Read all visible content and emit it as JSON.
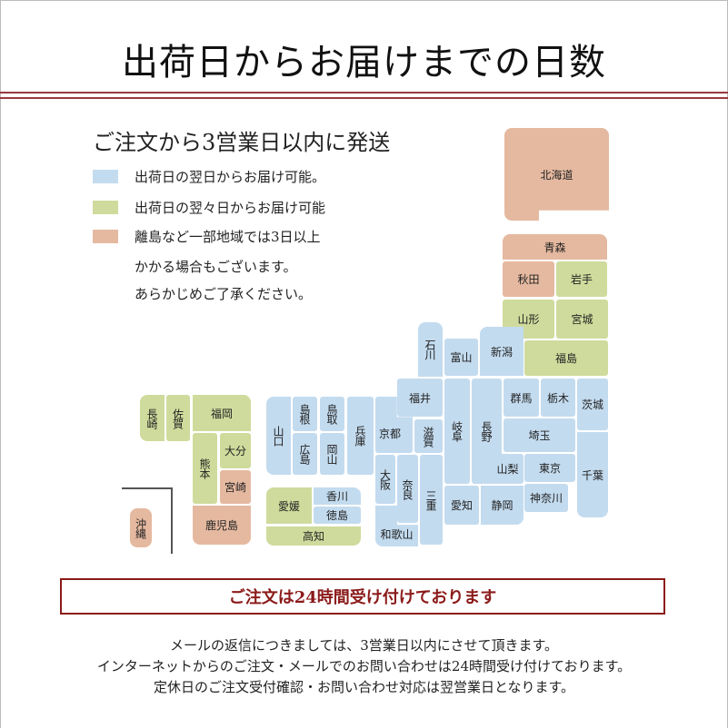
{
  "title": "出荷日からお届けまでの日数",
  "subtitle": "ご注文から3営業日以内に発送",
  "colors": {
    "next_day": "#c3dbef",
    "two_days": "#cfdb9c",
    "three_plus": "#e5b9a0",
    "accent": "#8b1a1a"
  },
  "legend": [
    {
      "zone": "blue",
      "text": "出荷日の翌日からお届け可能。"
    },
    {
      "zone": "green",
      "text": "出荷日の翌々日からお届け可能"
    },
    {
      "zone": "salmon",
      "text": "離島など一部地域では3日以上"
    }
  ],
  "legend_notes": [
    "かかる場合もございます。",
    "あらかじめご了承ください。"
  ],
  "prefectures": [
    {
      "name": "北海道",
      "zone": "salmon"
    },
    {
      "name": "青森",
      "zone": "salmon"
    },
    {
      "name": "秋田",
      "zone": "salmon"
    },
    {
      "name": "岩手",
      "zone": "green"
    },
    {
      "name": "山形",
      "zone": "green"
    },
    {
      "name": "宮城",
      "zone": "green"
    },
    {
      "name": "福島",
      "zone": "green"
    },
    {
      "name": "石川",
      "zone": "blue"
    },
    {
      "name": "富山",
      "zone": "blue"
    },
    {
      "name": "新潟",
      "zone": "blue"
    },
    {
      "name": "福井",
      "zone": "blue"
    },
    {
      "name": "岐阜",
      "zone": "blue"
    },
    {
      "name": "長野",
      "zone": "blue"
    },
    {
      "name": "群馬",
      "zone": "blue"
    },
    {
      "name": "栃木",
      "zone": "blue"
    },
    {
      "name": "茨城",
      "zone": "blue"
    },
    {
      "name": "埼玉",
      "zone": "blue"
    },
    {
      "name": "千葉",
      "zone": "blue"
    },
    {
      "name": "山梨",
      "zone": "blue"
    },
    {
      "name": "東京",
      "zone": "blue"
    },
    {
      "name": "神奈川",
      "zone": "blue"
    },
    {
      "name": "愛知",
      "zone": "blue"
    },
    {
      "name": "静岡",
      "zone": "blue"
    },
    {
      "name": "三重",
      "zone": "blue"
    },
    {
      "name": "滋賀",
      "zone": "blue"
    },
    {
      "name": "京都",
      "zone": "blue"
    },
    {
      "name": "兵庫",
      "zone": "blue"
    },
    {
      "name": "鳥取",
      "zone": "blue"
    },
    {
      "name": "岡山",
      "zone": "blue"
    },
    {
      "name": "島根",
      "zone": "blue"
    },
    {
      "name": "広島",
      "zone": "blue"
    },
    {
      "name": "山口",
      "zone": "blue"
    },
    {
      "name": "大阪",
      "zone": "blue"
    },
    {
      "name": "奈良",
      "zone": "blue"
    },
    {
      "name": "和歌山",
      "zone": "blue"
    },
    {
      "name": "愛媛",
      "zone": "green"
    },
    {
      "name": "香川",
      "zone": "blue"
    },
    {
      "name": "徳島",
      "zone": "blue"
    },
    {
      "name": "高知",
      "zone": "green"
    },
    {
      "name": "長崎",
      "zone": "green"
    },
    {
      "name": "佐賀",
      "zone": "green"
    },
    {
      "name": "福岡",
      "zone": "green"
    },
    {
      "name": "熊本",
      "zone": "green"
    },
    {
      "name": "大分",
      "zone": "green"
    },
    {
      "name": "宮崎",
      "zone": "salmon"
    },
    {
      "name": "鹿児島",
      "zone": "salmon"
    },
    {
      "name": "沖縄",
      "zone": "salmon"
    }
  ],
  "notice": "ご注文は24時間受け付けております",
  "footer": [
    "メールの返信につきましては、3営業日以内にさせて頂きます。",
    "インターネットからのご注文・メールでのお問い合わせは24時間受け付けております。",
    "定休日のご注文受付確認・お問い合わせ対応は翌営業日となります。"
  ]
}
